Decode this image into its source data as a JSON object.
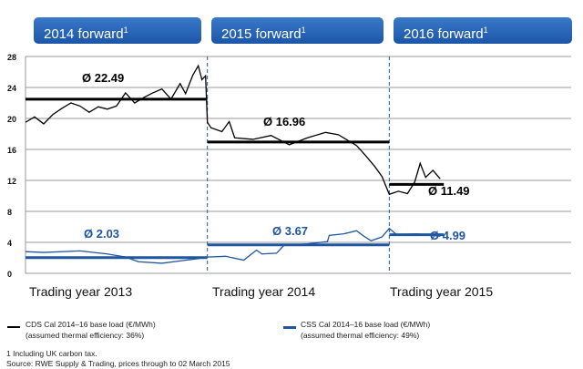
{
  "headers": [
    "2014 forward",
    "2015 forward",
    "2016 forward"
  ],
  "header_footnote": "1",
  "chart_data": {
    "type": "line",
    "ylim": [
      0,
      28
    ],
    "yticks": [
      0,
      4,
      8,
      12,
      16,
      20,
      24,
      28
    ],
    "grid": true,
    "xlim": [
      2013,
      2016
    ],
    "period_labels": [
      "Trading year 2013",
      "Trading year 2014",
      "Trading year 2015"
    ],
    "series": [
      {
        "name": "CDS Cal 2014–16 base load (€/MWh)",
        "note": "(assumed thermal efficiency: 36%)",
        "color": "#000000",
        "points": [
          [
            2013,
            19.5
          ],
          [
            2013.05,
            20.2
          ],
          [
            2013.1,
            19.3
          ],
          [
            2013.15,
            20.5
          ],
          [
            2013.2,
            21.3
          ],
          [
            2013.25,
            22
          ],
          [
            2013.3,
            21.6
          ],
          [
            2013.35,
            20.8
          ],
          [
            2013.4,
            21.5
          ],
          [
            2013.45,
            21.2
          ],
          [
            2013.5,
            21.6
          ],
          [
            2013.55,
            23.3
          ],
          [
            2013.6,
            22
          ],
          [
            2013.65,
            22.7
          ],
          [
            2013.7,
            23.3
          ],
          [
            2013.75,
            23.8
          ],
          [
            2013.8,
            22.5
          ],
          [
            2013.85,
            24.5
          ],
          [
            2013.88,
            23.2
          ],
          [
            2013.92,
            25.6
          ],
          [
            2013.95,
            26.8
          ],
          [
            2013.97,
            25
          ],
          [
            2013.99,
            25.5
          ],
          [
            2014.0,
            19.5
          ],
          [
            2014.02,
            18.8
          ],
          [
            2014.08,
            18.3
          ],
          [
            2014.12,
            19.6
          ],
          [
            2014.15,
            17.5
          ],
          [
            2014.25,
            17.3
          ],
          [
            2014.35,
            17.8
          ],
          [
            2014.45,
            16.6
          ],
          [
            2014.55,
            17.5
          ],
          [
            2014.65,
            18.2
          ],
          [
            2014.72,
            17.9
          ],
          [
            2014.77,
            17.2
          ],
          [
            2014.82,
            16.5
          ],
          [
            2014.87,
            15.2
          ],
          [
            2014.92,
            13.8
          ],
          [
            2014.96,
            12.5
          ],
          [
            2015.0,
            10.2
          ],
          [
            2015.05,
            10.6
          ],
          [
            2015.1,
            10.3
          ],
          [
            2015.14,
            11.8
          ],
          [
            2015.17,
            14.2
          ],
          [
            2015.2,
            12.4
          ],
          [
            2015.24,
            13.3
          ],
          [
            2015.28,
            12.2
          ]
        ]
      },
      {
        "name": "CSS Cal 2014–16 base load (€/MWh)",
        "note": "(assumed thermal efficiency: 49%)",
        "color": "#1f56a0",
        "points": [
          [
            2013,
            2.8
          ],
          [
            2013.1,
            2.7
          ],
          [
            2013.3,
            2.9
          ],
          [
            2013.45,
            2.5
          ],
          [
            2013.55,
            2.1
          ],
          [
            2013.62,
            1.5
          ],
          [
            2013.75,
            1.3
          ],
          [
            2013.85,
            1.6
          ],
          [
            2013.95,
            1.9
          ],
          [
            2014.0,
            2.1
          ],
          [
            2014.1,
            2.2
          ],
          [
            2014.2,
            1.7
          ],
          [
            2014.27,
            3
          ],
          [
            2014.3,
            2.5
          ],
          [
            2014.38,
            2.6
          ],
          [
            2014.42,
            3.6
          ],
          [
            2014.55,
            3.8
          ],
          [
            2014.66,
            4.1
          ],
          [
            2014.67,
            4.9
          ],
          [
            2014.75,
            5.1
          ],
          [
            2014.82,
            5.5
          ],
          [
            2014.86,
            4.8
          ],
          [
            2014.9,
            4.2
          ],
          [
            2014.96,
            4.7
          ],
          [
            2015.0,
            5.8
          ],
          [
            2015.04,
            5.0
          ],
          [
            2015.15,
            5.1
          ],
          [
            2015.28,
            4.8
          ]
        ]
      }
    ],
    "averages": [
      {
        "series": "CDS",
        "label": "Ø 22.49",
        "value": 22.49,
        "from": 2013,
        "to": 2014
      },
      {
        "series": "CDS",
        "label": "Ø 16.96",
        "value": 16.96,
        "from": 2014,
        "to": 2015
      },
      {
        "series": "CDS",
        "label": "Ø 11.49",
        "value": 11.49,
        "from": 2015,
        "to": 2015.3
      },
      {
        "series": "CSS",
        "label": "Ø 2.03",
        "value": 2.03,
        "from": 2013,
        "to": 2014
      },
      {
        "series": "CSS",
        "label": "Ø 3.67",
        "value": 3.67,
        "from": 2014,
        "to": 2015
      },
      {
        "series": "CSS",
        "label": "Ø 4.99",
        "value": 4.99,
        "from": 2015,
        "to": 2015.3
      }
    ]
  },
  "footnotes": [
    "1 Including UK carbon tax.",
    "Source: RWE Supply & Trading, prices through to 02 March 2015"
  ]
}
